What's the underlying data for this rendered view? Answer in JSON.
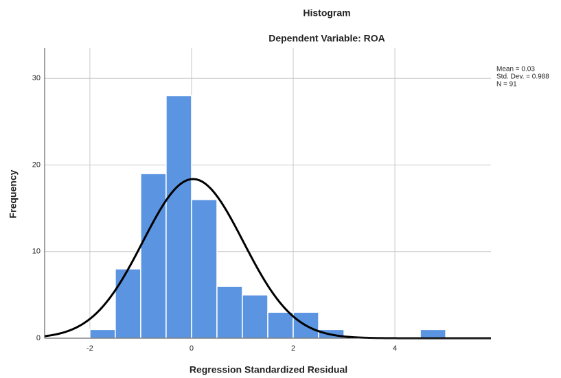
{
  "chart_data": {
    "type": "histogram",
    "title": "Histogram",
    "subtitle": "Dependent Variable: ROA",
    "x_label": "Regression Standardized Residual",
    "y_label": "Frequency",
    "bins": [
      -2,
      -1.5,
      -1,
      -0.5,
      0,
      0.5,
      1,
      1.5,
      2,
      2.5,
      3,
      3.5,
      4,
      4.5,
      5
    ],
    "values": [
      1,
      8,
      19,
      28,
      16,
      6,
      5,
      3,
      3,
      1,
      0,
      0,
      0,
      1
    ],
    "color": "#5b94e1",
    "curve_color": "#000000",
    "xlim": [
      -2.89,
      5.89
    ],
    "ylim": [
      0,
      33.5
    ],
    "xticks": [
      -2,
      0,
      2,
      4
    ],
    "yticks": [
      0,
      10,
      20,
      30
    ],
    "grid": true,
    "stats": [
      {
        "value": 0.03,
        "label": "Mean = 0.03"
      },
      {
        "value": 0.988,
        "label": "Std. Dev. = 0.988"
      },
      {
        "value": 91,
        "label": "N = 91"
      }
    ]
  }
}
